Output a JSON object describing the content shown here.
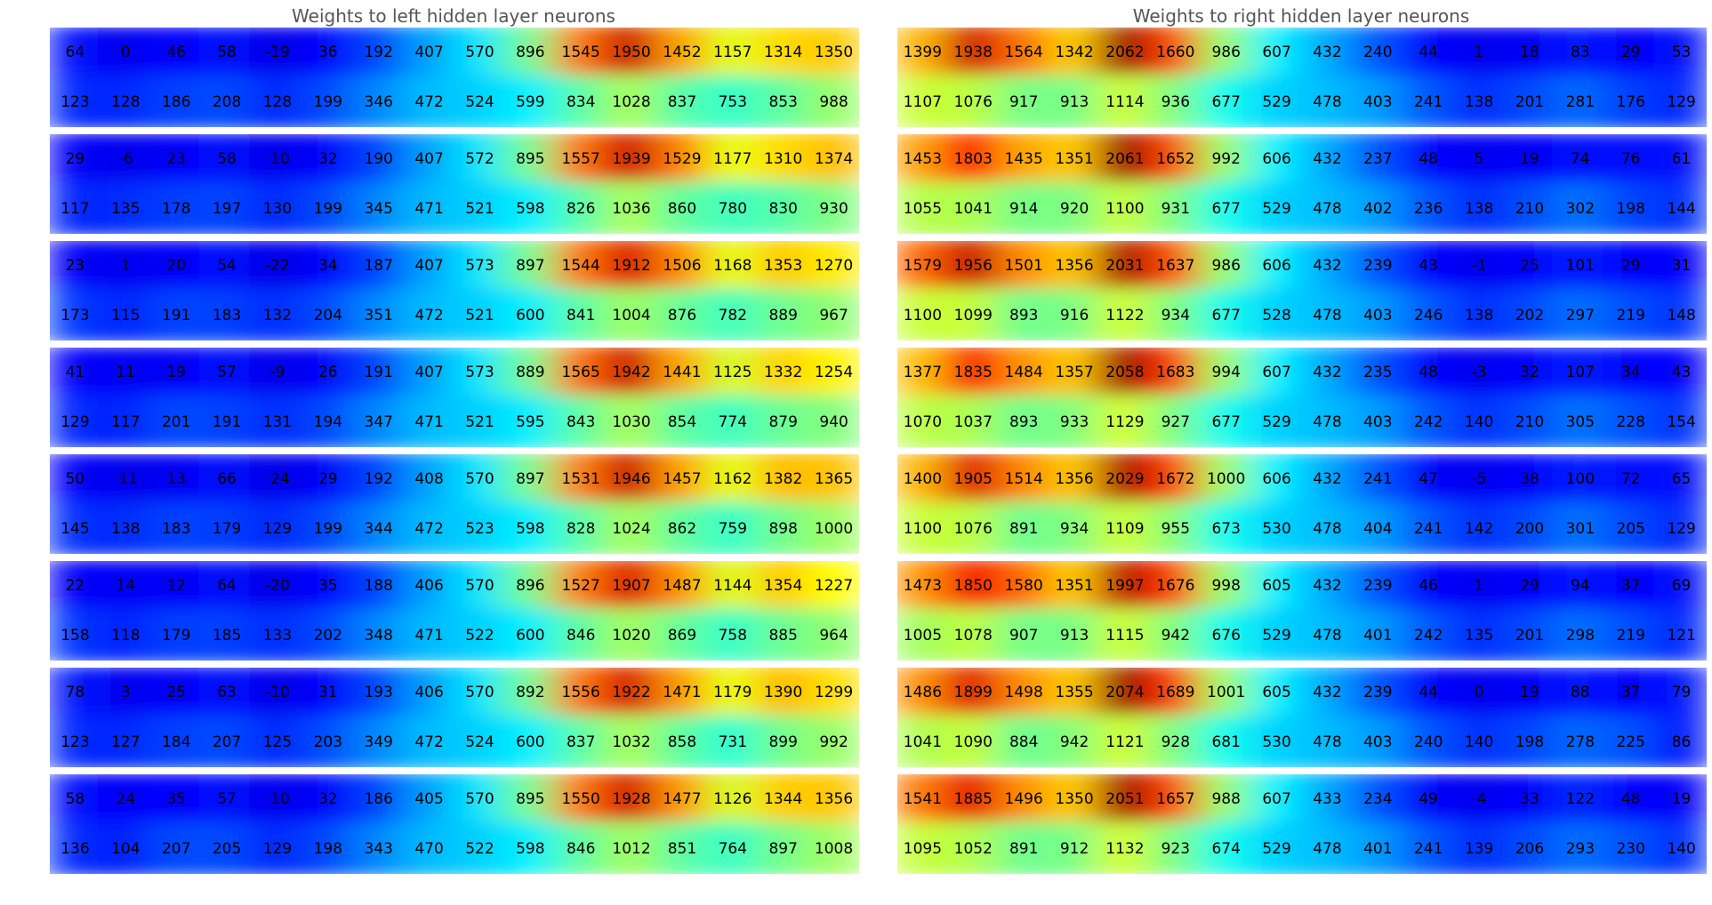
{
  "chart_data": [
    {
      "type": "heatmap",
      "title": "Weights to left hidden layer neurons",
      "columns": 16,
      "rows_per_block": 2,
      "colormap": "jet",
      "grid": false,
      "blocks": [
        [
          [
            64,
            0,
            46,
            58,
            -19,
            36,
            192,
            407,
            570,
            896,
            1545,
            1950,
            1452,
            1157,
            1314,
            1350
          ],
          [
            123,
            128,
            186,
            208,
            128,
            199,
            346,
            472,
            524,
            599,
            834,
            1028,
            837,
            753,
            853,
            988
          ]
        ],
        [
          [
            29,
            -6,
            23,
            58,
            -10,
            32,
            190,
            407,
            572,
            895,
            1557,
            1939,
            1529,
            1177,
            1310,
            1374
          ],
          [
            117,
            135,
            178,
            197,
            130,
            199,
            345,
            471,
            521,
            598,
            826,
            1036,
            860,
            780,
            830,
            930
          ]
        ],
        [
          [
            23,
            1,
            20,
            54,
            -22,
            34,
            187,
            407,
            573,
            897,
            1544,
            1912,
            1506,
            1168,
            1353,
            1270
          ],
          [
            173,
            115,
            191,
            183,
            132,
            204,
            351,
            472,
            521,
            600,
            841,
            1004,
            876,
            782,
            889,
            967
          ]
        ],
        [
          [
            41,
            11,
            19,
            57,
            -9,
            26,
            191,
            407,
            573,
            889,
            1565,
            1942,
            1441,
            1125,
            1332,
            1254
          ],
          [
            129,
            117,
            201,
            191,
            131,
            194,
            347,
            471,
            521,
            595,
            843,
            1030,
            854,
            774,
            879,
            940
          ]
        ],
        [
          [
            50,
            -11,
            13,
            66,
            -24,
            29,
            192,
            408,
            570,
            897,
            1531,
            1946,
            1457,
            1162,
            1382,
            1365
          ],
          [
            145,
            138,
            183,
            179,
            129,
            199,
            344,
            472,
            523,
            598,
            828,
            1024,
            862,
            759,
            898,
            1000
          ]
        ],
        [
          [
            22,
            14,
            12,
            64,
            -20,
            35,
            188,
            406,
            570,
            896,
            1527,
            1907,
            1487,
            1144,
            1354,
            1227
          ],
          [
            158,
            118,
            179,
            185,
            133,
            202,
            348,
            471,
            522,
            600,
            846,
            1020,
            869,
            758,
            885,
            964
          ]
        ],
        [
          [
            78,
            3,
            25,
            63,
            -10,
            31,
            193,
            406,
            570,
            892,
            1556,
            1922,
            1471,
            1179,
            1390,
            1299
          ],
          [
            123,
            127,
            184,
            207,
            125,
            203,
            349,
            472,
            524,
            600,
            837,
            1032,
            858,
            731,
            899,
            992
          ]
        ],
        [
          [
            58,
            24,
            35,
            57,
            -10,
            32,
            186,
            405,
            570,
            895,
            1550,
            1928,
            1477,
            1126,
            1344,
            1356
          ],
          [
            136,
            104,
            207,
            205,
            129,
            198,
            343,
            470,
            522,
            598,
            846,
            1012,
            851,
            764,
            897,
            1008
          ]
        ]
      ]
    },
    {
      "type": "heatmap",
      "title": "Weights to right hidden layer neurons",
      "columns": 16,
      "rows_per_block": 2,
      "colormap": "jet",
      "grid": false,
      "blocks": [
        [
          [
            1399,
            1938,
            1564,
            1342,
            2062,
            1660,
            986,
            607,
            432,
            240,
            44,
            1,
            18,
            83,
            29,
            53
          ],
          [
            1107,
            1076,
            917,
            913,
            1114,
            936,
            677,
            529,
            478,
            403,
            241,
            138,
            201,
            281,
            176,
            129
          ]
        ],
        [
          [
            1453,
            1803,
            1435,
            1351,
            2061,
            1652,
            992,
            606,
            432,
            237,
            48,
            5,
            19,
            74,
            76,
            61
          ],
          [
            1055,
            1041,
            914,
            920,
            1100,
            931,
            677,
            529,
            478,
            402,
            236,
            138,
            210,
            302,
            198,
            144
          ]
        ],
        [
          [
            1579,
            1956,
            1501,
            1356,
            2031,
            1637,
            986,
            606,
            432,
            239,
            43,
            -1,
            25,
            101,
            29,
            31
          ],
          [
            1100,
            1099,
            893,
            916,
            1122,
            934,
            677,
            528,
            478,
            403,
            246,
            138,
            202,
            297,
            219,
            148
          ]
        ],
        [
          [
            1377,
            1835,
            1484,
            1357,
            2058,
            1683,
            994,
            607,
            432,
            235,
            48,
            -3,
            32,
            107,
            34,
            43
          ],
          [
            1070,
            1037,
            893,
            933,
            1129,
            927,
            677,
            529,
            478,
            403,
            242,
            140,
            210,
            305,
            228,
            154
          ]
        ],
        [
          [
            1400,
            1905,
            1514,
            1356,
            2029,
            1672,
            1000,
            606,
            432,
            241,
            47,
            -5,
            38,
            100,
            72,
            65
          ],
          [
            1100,
            1076,
            891,
            934,
            1109,
            955,
            673,
            530,
            478,
            404,
            241,
            142,
            200,
            301,
            205,
            129
          ]
        ],
        [
          [
            1473,
            1850,
            1580,
            1351,
            1997,
            1676,
            998,
            605,
            432,
            239,
            46,
            1,
            29,
            94,
            37,
            69
          ],
          [
            1005,
            1078,
            907,
            913,
            1115,
            942,
            676,
            529,
            478,
            401,
            242,
            135,
            201,
            298,
            219,
            121
          ]
        ],
        [
          [
            1486,
            1899,
            1498,
            1355,
            2074,
            1689,
            1001,
            605,
            432,
            239,
            44,
            0,
            19,
            88,
            37,
            79
          ],
          [
            1041,
            1090,
            884,
            942,
            1121,
            928,
            681,
            530,
            478,
            403,
            240,
            140,
            198,
            278,
            225,
            86
          ]
        ],
        [
          [
            1541,
            1885,
            1496,
            1350,
            2051,
            1657,
            988,
            607,
            433,
            234,
            49,
            -4,
            33,
            122,
            48,
            19
          ],
          [
            1095,
            1052,
            891,
            912,
            1132,
            923,
            674,
            529,
            478,
            401,
            241,
            139,
            206,
            293,
            230,
            140
          ]
        ]
      ]
    }
  ]
}
